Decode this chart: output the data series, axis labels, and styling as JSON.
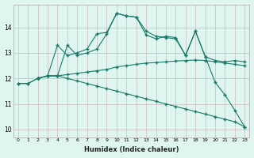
{
  "xlabel": "Humidex (Indice chaleur)",
  "bg_color": "#dff5f0",
  "grid_color": "#ccbbbb",
  "line_color": "#1a7a6a",
  "xlim": [
    -0.5,
    23.5
  ],
  "ylim": [
    9.7,
    14.9
  ],
  "xticks": [
    0,
    1,
    2,
    3,
    4,
    5,
    6,
    7,
    8,
    9,
    10,
    11,
    12,
    13,
    14,
    15,
    16,
    17,
    18,
    19,
    20,
    21,
    22,
    23
  ],
  "yticks": [
    10,
    11,
    12,
    13,
    14
  ],
  "line1_x": [
    0,
    1,
    2,
    3,
    4,
    5,
    6,
    7,
    8,
    9,
    10,
    11,
    12,
    13,
    14,
    15,
    16,
    17,
    18,
    19,
    20,
    21,
    22,
    23
  ],
  "line1_y": [
    11.8,
    11.8,
    12.0,
    12.1,
    13.3,
    12.9,
    13.0,
    13.15,
    13.75,
    13.8,
    14.55,
    14.45,
    14.4,
    13.7,
    13.55,
    13.65,
    13.6,
    12.9,
    13.85,
    12.85,
    12.7,
    12.65,
    12.7,
    12.65
  ],
  "line2_x": [
    2,
    3,
    4,
    5,
    6,
    7,
    8,
    9,
    10,
    11,
    12,
    13,
    14,
    15,
    16,
    17,
    18,
    19,
    20,
    21,
    22,
    23
  ],
  "line2_y": [
    12.0,
    12.1,
    12.1,
    13.3,
    12.9,
    13.0,
    13.15,
    13.75,
    14.55,
    14.45,
    14.4,
    13.85,
    13.65,
    13.6,
    13.55,
    12.9,
    13.85,
    12.85,
    11.85,
    11.35,
    10.75,
    10.1
  ],
  "line3_x": [
    2,
    3,
    4,
    5,
    6,
    7,
    8,
    9,
    10,
    11,
    12,
    13,
    14,
    15,
    16,
    17,
    18,
    19,
    20,
    21,
    22,
    23
  ],
  "line3_y": [
    12.0,
    12.1,
    12.1,
    12.15,
    12.2,
    12.25,
    12.3,
    12.35,
    12.45,
    12.5,
    12.55,
    12.6,
    12.62,
    12.65,
    12.68,
    12.7,
    12.72,
    12.7,
    12.65,
    12.6,
    12.55,
    12.5
  ],
  "line4_x": [
    2,
    3,
    4,
    5,
    6,
    7,
    8,
    9,
    10,
    11,
    12,
    13,
    14,
    15,
    16,
    17,
    18,
    19,
    20,
    21,
    22,
    23
  ],
  "line4_y": [
    12.0,
    12.1,
    12.1,
    12.0,
    11.9,
    11.8,
    11.7,
    11.6,
    11.5,
    11.4,
    11.3,
    11.2,
    11.1,
    11.0,
    10.9,
    10.8,
    10.7,
    10.6,
    10.5,
    10.4,
    10.3,
    10.1
  ],
  "line0_x": [
    0,
    1,
    2
  ],
  "line0_y": [
    11.8,
    11.8,
    12.0
  ]
}
